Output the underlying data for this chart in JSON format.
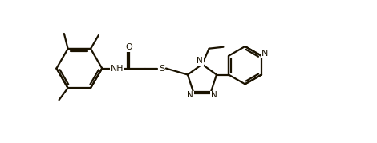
{
  "bg_color": "#ffffff",
  "line_color": "#1a1200",
  "line_width": 1.6,
  "figsize": [
    4.7,
    1.79
  ],
  "dpi": 100,
  "xlim": [
    0,
    10.0
  ],
  "ylim": [
    -0.5,
    4.0
  ]
}
